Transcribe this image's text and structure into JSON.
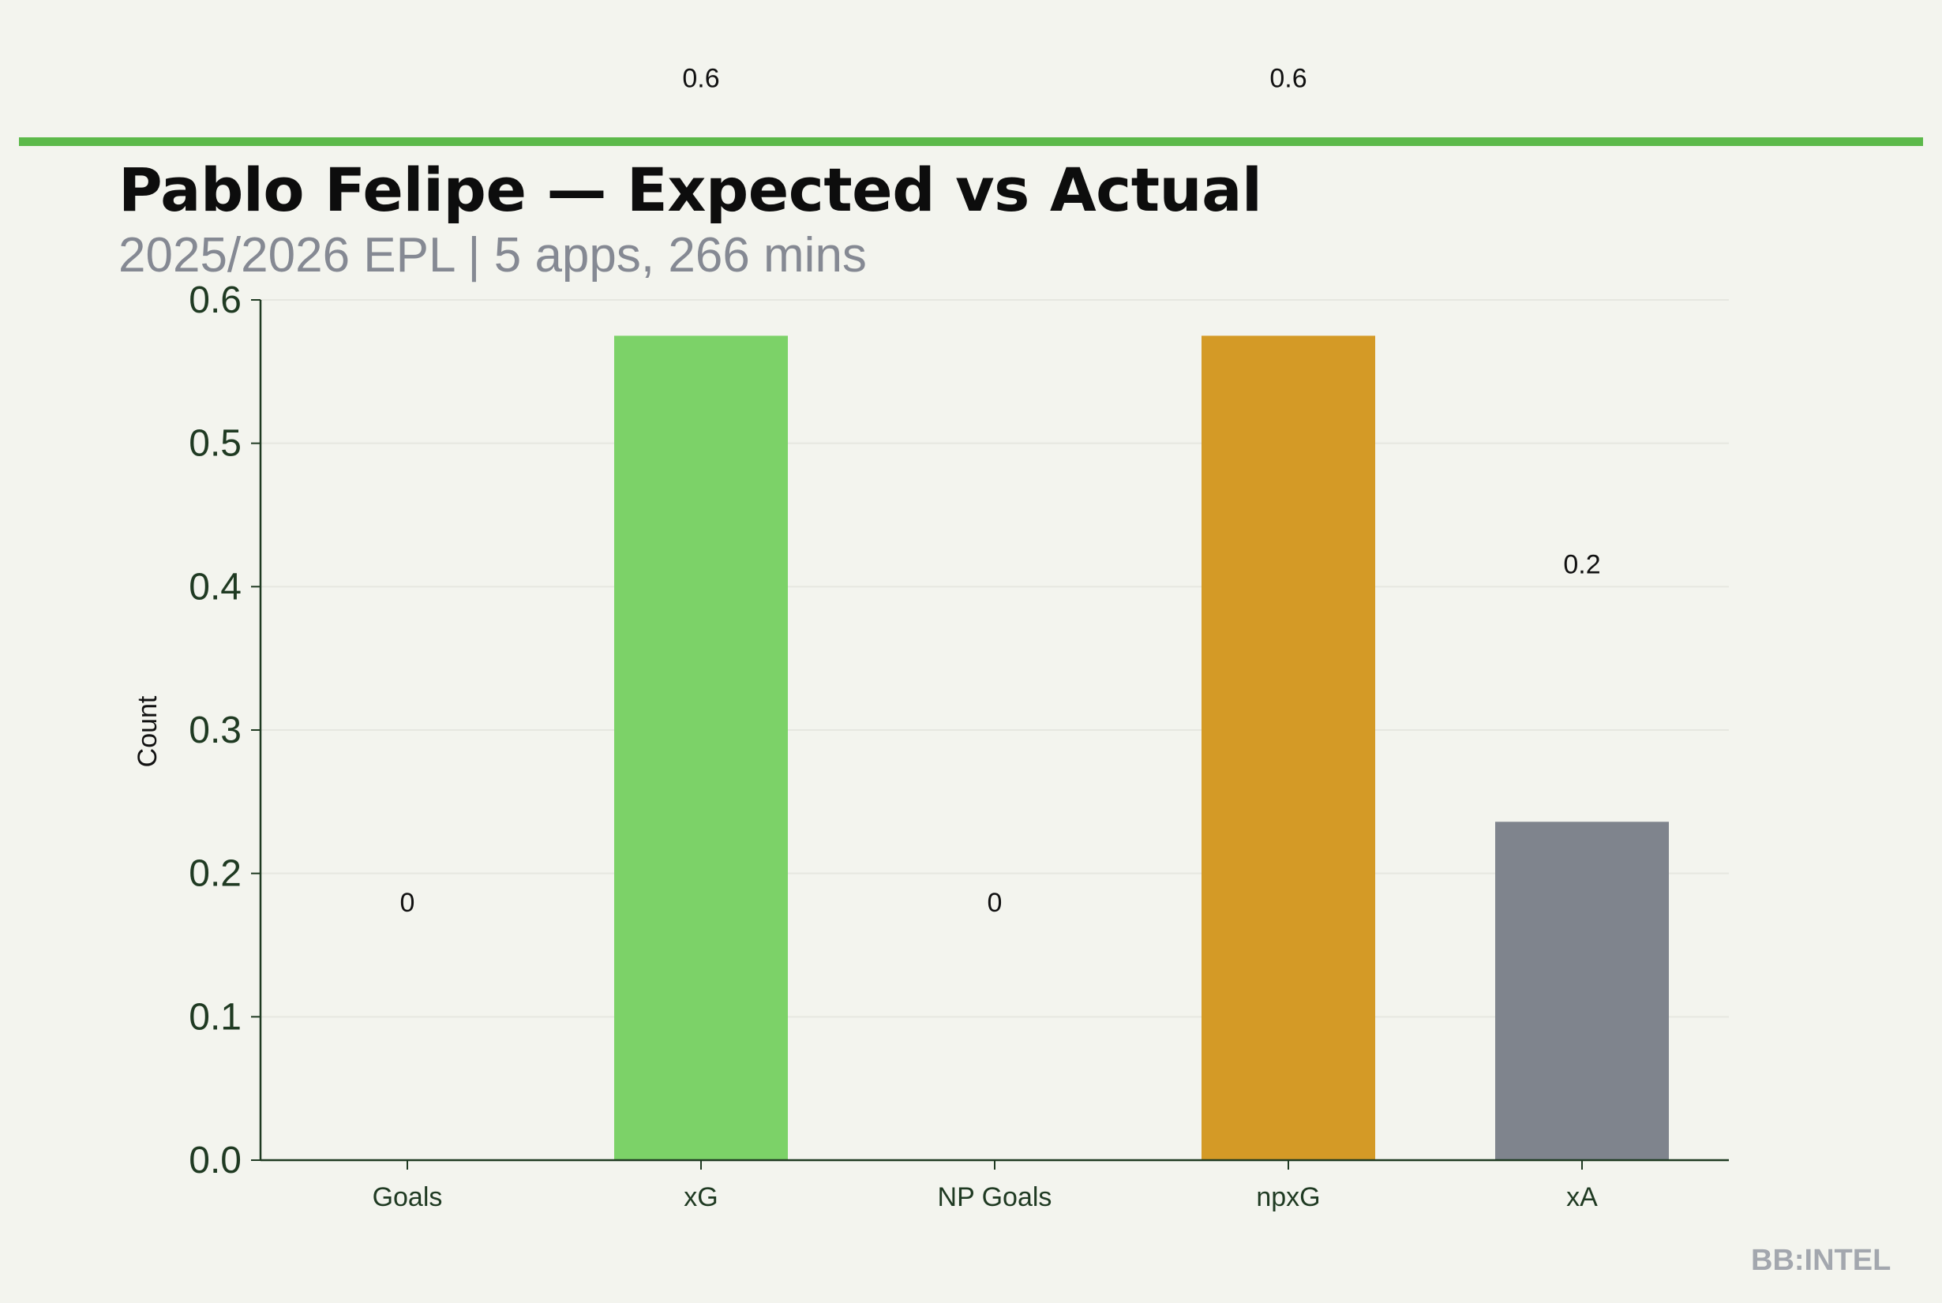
{
  "header": {
    "title": "Pablo Felipe — Expected vs Actual",
    "subtitle": "2025/2026 EPL | 5 apps, 266 mins",
    "accent_color": "#5cb94a"
  },
  "watermark": "BB:INTEL",
  "chart_data": {
    "type": "bar",
    "categories": [
      "Goals",
      "xG",
      "NP Goals",
      "npxG",
      "xA"
    ],
    "values": [
      0,
      0.575,
      0,
      0.575,
      0.236
    ],
    "data_labels": [
      "0",
      "0.6",
      "0",
      "0.6",
      "0.2"
    ],
    "colors": [
      "#5cb94a",
      "#7cd268",
      "#5cb94a",
      "#d49a26",
      "#7f848d"
    ],
    "ylabel": "Count",
    "ylim": [
      0,
      0.6
    ],
    "yticks": [
      "0.0",
      "0.1",
      "0.2",
      "0.3",
      "0.4",
      "0.5",
      "0.6"
    ],
    "grid": true,
    "axis_color": "#1f3a22"
  }
}
